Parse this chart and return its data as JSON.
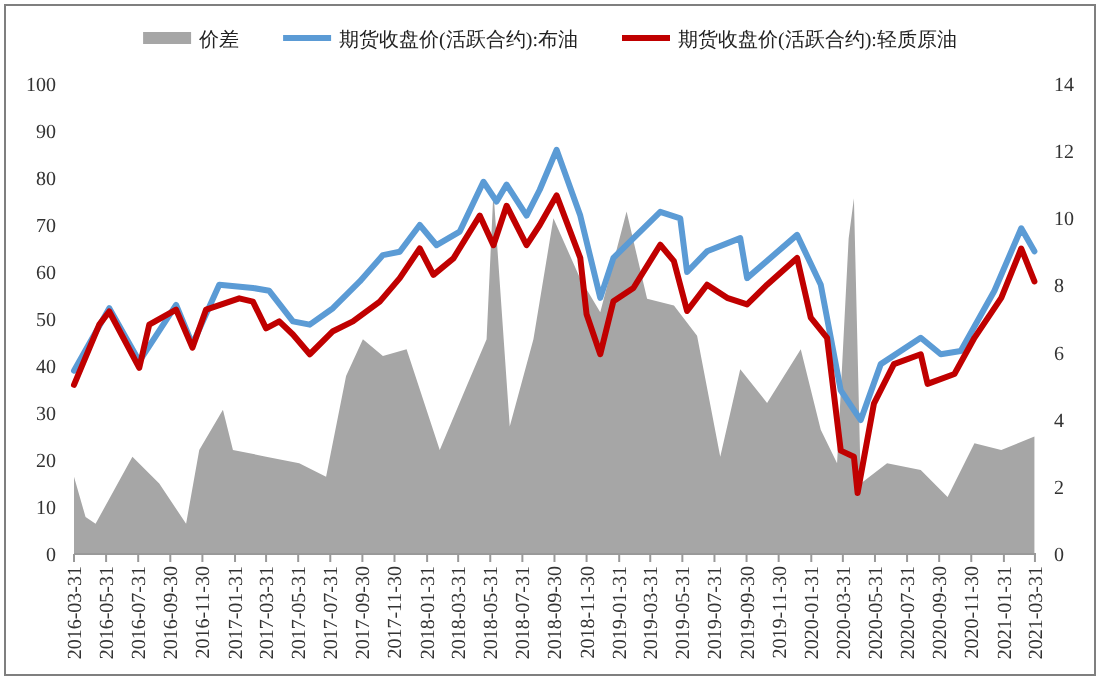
{
  "chart_data": {
    "type": "line",
    "legend": "top",
    "xlim": [
      "2016-03-31",
      "2021-04-02"
    ],
    "xticks": [
      "2016-03-31",
      "2016-05-31",
      "2016-07-31",
      "2016-09-30",
      "2016-11-30",
      "2017-01-31",
      "2017-03-31",
      "2017-05-31",
      "2017-07-31",
      "2017-09-30",
      "2017-11-30",
      "2018-01-31",
      "2018-03-31",
      "2018-05-31",
      "2018-07-31",
      "2018-09-30",
      "2018-11-30",
      "2019-01-31",
      "2019-03-31",
      "2019-05-31",
      "2019-07-31",
      "2019-09-30",
      "2019-11-30",
      "2020-01-31",
      "2020-03-31",
      "2020-05-31",
      "2020-07-31",
      "2020-09-30",
      "2020-11-30",
      "2021-01-31",
      "2021-03-31"
    ],
    "ylim": [
      0,
      100
    ],
    "yticks": [
      0,
      10,
      20,
      30,
      40,
      50,
      60,
      70,
      80,
      90,
      100
    ],
    "y2lim": [
      0,
      14
    ],
    "y2ticks": [
      0,
      2,
      4,
      6,
      8,
      10,
      12,
      14
    ],
    "series": [
      {
        "name": "价差",
        "type": "area",
        "axis": "y2",
        "color": "#a6a6a6",
        "x": [
          "2016-03-31",
          "2016-04-22",
          "2016-05-11",
          "2016-07-20",
          "2016-09-09",
          "2016-10-30",
          "2016-11-24",
          "2017-01-08",
          "2017-01-27",
          "2017-03-31",
          "2017-06-02",
          "2017-07-23",
          "2017-08-30",
          "2017-10-01",
          "2017-11-08",
          "2017-12-23",
          "2018-02-24",
          "2018-04-16",
          "2018-05-24",
          "2018-06-06",
          "2018-07-07",
          "2018-08-21",
          "2018-09-28",
          "2018-11-18",
          "2018-12-26",
          "2019-02-14",
          "2019-03-25",
          "2019-05-15",
          "2019-06-28",
          "2019-08-11",
          "2019-09-18",
          "2019-11-08",
          "2020-01-11",
          "2020-02-18",
          "2020-03-20",
          "2020-04-11",
          "2020-04-21",
          "2020-05-04",
          "2020-06-23",
          "2020-08-26",
          "2020-10-16",
          "2020-12-06",
          "2021-01-26",
          "2021-03-30"
        ],
        "values": [
          2.3,
          1.1,
          0.9,
          2.9,
          2.1,
          0.9,
          3.1,
          4.3,
          3.1,
          2.9,
          2.7,
          2.3,
          5.3,
          6.4,
          5.9,
          6.1,
          3.1,
          5.0,
          6.4,
          10.8,
          3.8,
          6.4,
          10.0,
          8.2,
          7.2,
          10.2,
          7.6,
          7.4,
          6.5,
          2.9,
          5.5,
          4.5,
          6.1,
          3.7,
          2.7,
          9.4,
          10.6,
          2.1,
          2.7,
          2.5,
          1.7,
          3.3,
          3.1,
          3.5
        ]
      },
      {
        "name": "期货收盘价(活跃合约):布油",
        "color": "#5b9bd5",
        "x": [
          "2016-03-31",
          "2016-06-06",
          "2016-08-02",
          "2016-10-11",
          "2016-11-11",
          "2017-01-01",
          "2017-03-06",
          "2017-04-06",
          "2017-05-21",
          "2017-06-22",
          "2017-08-05",
          "2017-09-25",
          "2017-11-08",
          "2017-12-10",
          "2018-01-17",
          "2018-02-18",
          "2018-04-03",
          "2018-05-18",
          "2018-06-12",
          "2018-07-01",
          "2018-08-08",
          "2018-09-02",
          "2018-10-04",
          "2018-11-18",
          "2018-12-26",
          "2019-01-20",
          "2019-04-19",
          "2019-05-27",
          "2019-06-09",
          "2019-07-17",
          "2019-09-18",
          "2019-10-01",
          "2020-01-04",
          "2020-02-18",
          "2020-03-27",
          "2020-04-21",
          "2020-05-04",
          "2020-06-11",
          "2020-08-26",
          "2020-10-03",
          "2020-11-10",
          "2021-01-13",
          "2021-03-05",
          "2021-03-30"
        ],
        "values": [
          39,
          52.3,
          41,
          53,
          44.6,
          57.3,
          56.6,
          56,
          49.5,
          48.8,
          52.3,
          58,
          63.6,
          64.3,
          70,
          65.7,
          68.6,
          79.2,
          75,
          78.6,
          72,
          77.5,
          86,
          72,
          54.5,
          63,
          72.8,
          71.4,
          60,
          64.4,
          67.2,
          58.7,
          67.9,
          57.3,
          34.8,
          30.6,
          28.5,
          40.4,
          46,
          42.5,
          43.2,
          56,
          69.3,
          64.4
        ]
      },
      {
        "name": "期货收盘价(活跃合约):轻质原油",
        "color": "#c00000",
        "x": [
          "2016-03-31",
          "2016-05-18",
          "2016-06-06",
          "2016-08-02",
          "2016-08-21",
          "2016-10-11",
          "2016-11-11",
          "2016-12-07",
          "2017-02-08",
          "2017-03-06",
          "2017-03-31",
          "2017-04-25",
          "2017-05-21",
          "2017-06-22",
          "2017-08-05",
          "2017-09-12",
          "2017-11-02",
          "2017-12-10",
          "2018-01-17",
          "2018-02-12",
          "2018-03-22",
          "2018-05-11",
          "2018-06-06",
          "2018-07-01",
          "2018-08-08",
          "2018-09-02",
          "2018-10-04",
          "2018-11-18",
          "2018-11-30",
          "2018-12-26",
          "2019-01-20",
          "2019-02-27",
          "2019-04-19",
          "2019-05-15",
          "2019-06-09",
          "2019-07-17",
          "2019-08-24",
          "2019-10-01",
          "2019-11-08",
          "2020-01-04",
          "2020-01-30",
          "2020-03-01",
          "2020-03-27",
          "2020-04-21",
          "2020-04-28",
          "2020-05-29",
          "2020-07-06",
          "2020-08-26",
          "2020-09-08",
          "2020-10-29",
          "2020-12-06",
          "2021-01-26",
          "2021-03-05",
          "2021-03-30"
        ],
        "values": [
          36,
          48.8,
          51.6,
          39.6,
          48.8,
          52,
          43.9,
          52,
          54.4,
          53.7,
          48,
          49.5,
          46.7,
          42.5,
          47.4,
          49.5,
          53.7,
          58.7,
          65,
          59.4,
          62.9,
          72,
          65.7,
          74.1,
          65.7,
          70,
          76.3,
          63,
          51,
          42.5,
          53.8,
          56.6,
          65.8,
          62.3,
          51.7,
          57.3,
          54.5,
          53.1,
          57.3,
          63,
          50.3,
          46,
          22,
          20.7,
          13,
          32,
          40.4,
          42.5,
          36.2,
          38.3,
          46,
          54.5,
          65,
          58
        ]
      }
    ]
  }
}
